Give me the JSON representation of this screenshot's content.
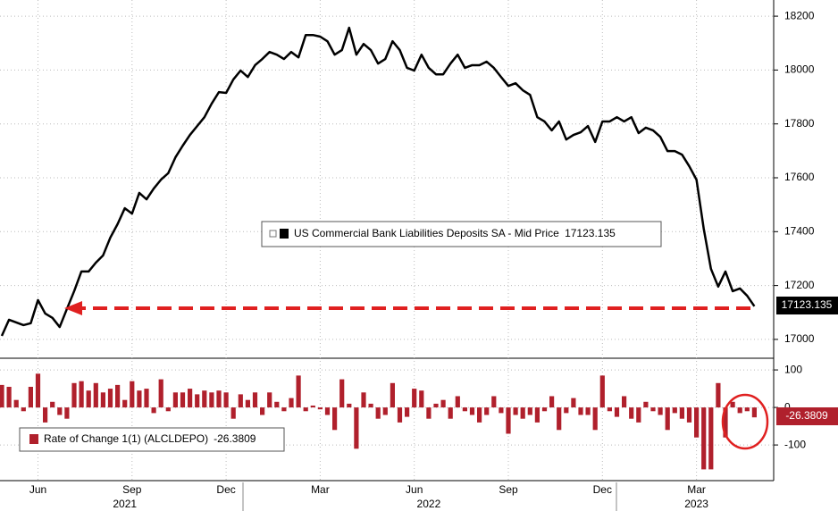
{
  "chart_data": [
    {
      "type": "line",
      "categories": [
        null,
        null,
        null,
        null,
        null,
        "Jun",
        null,
        null,
        null,
        null,
        null,
        null,
        null,
        null,
        null,
        null,
        null,
        null,
        "Sep",
        null,
        null,
        null,
        null,
        null,
        null,
        null,
        null,
        null,
        null,
        null,
        null,
        "Dec",
        null,
        null,
        null,
        null,
        null,
        null,
        null,
        null,
        null,
        null,
        null,
        null,
        "Mar",
        null,
        null,
        null,
        null,
        null,
        null,
        null,
        null,
        null,
        null,
        null,
        null,
        "Jun",
        null,
        null,
        null,
        null,
        null,
        null,
        null,
        null,
        null,
        null,
        null,
        null,
        "Sep",
        null,
        null,
        null,
        null,
        null,
        null,
        null,
        null,
        null,
        null,
        null,
        null,
        "Dec",
        null,
        null,
        null,
        null,
        null,
        null,
        null,
        null,
        null,
        null,
        null,
        null,
        "Mar",
        null,
        null,
        null,
        null,
        null,
        null,
        null,
        null
      ],
      "years": [
        null,
        null,
        null,
        null,
        null,
        null,
        null,
        null,
        null,
        null,
        null,
        null,
        null,
        null,
        null,
        null,
        null,
        "2021",
        null,
        null,
        null,
        null,
        null,
        null,
        null,
        null,
        null,
        null,
        null,
        null,
        null,
        null,
        null,
        null,
        null,
        null,
        null,
        null,
        null,
        null,
        null,
        null,
        null,
        null,
        null,
        null,
        null,
        null,
        null,
        null,
        null,
        null,
        null,
        null,
        null,
        null,
        null,
        null,
        null,
        "2022",
        null,
        null,
        null,
        null,
        null,
        null,
        null,
        null,
        null,
        null,
        null,
        null,
        null,
        null,
        null,
        null,
        null,
        null,
        null,
        null,
        null,
        null,
        null,
        null,
        null,
        null,
        null,
        null,
        null,
        null,
        null,
        null,
        null,
        null,
        null,
        null,
        "2023",
        null,
        null,
        null,
        null,
        null,
        null,
        null,
        null
      ],
      "series": [
        {
          "name": "US Commercial Bank Liabilities Deposits SA - Mid Price",
          "color": "#000000",
          "values": [
            17013,
            17073,
            17063,
            17053,
            17060,
            17146,
            17096,
            17080,
            17046,
            17113,
            17179,
            17252,
            17252,
            17285,
            17312,
            17378,
            17428,
            17487,
            17467,
            17544,
            17520,
            17560,
            17593,
            17617,
            17676,
            17719,
            17759,
            17792,
            17825,
            17875,
            17918,
            17915,
            17965,
            17998,
            17974,
            18018,
            18041,
            18067,
            18057,
            18041,
            18067,
            18047,
            18130,
            18130,
            18124,
            18107,
            18057,
            18074,
            18157,
            18057,
            18097,
            18074,
            18024,
            18041,
            18107,
            18074,
            18008,
            17998,
            18057,
            18008,
            17984,
            17984,
            18024,
            18057,
            18008,
            18018,
            18018,
            18031,
            18008,
            17974,
            17941,
            17951,
            17925,
            17908,
            17825,
            17809,
            17776,
            17809,
            17742,
            17759,
            17769,
            17792,
            17733,
            17809,
            17809,
            17825,
            17809,
            17825,
            17766,
            17786,
            17776,
            17752,
            17699,
            17699,
            17686,
            17643,
            17593,
            17411,
            17262,
            17196,
            17252,
            17179,
            17189,
            17162,
            17123.135
          ]
        }
      ],
      "ylim": [
        16940,
        18260
      ],
      "yticks": [
        17000,
        17200,
        17400,
        17600,
        17800,
        18000,
        18200
      ],
      "grid": true
    },
    {
      "type": "bar",
      "series": [
        {
          "name": "Rate of Change 1(1) (ALCLDEPO)",
          "color": "#b0202c",
          "values": [
            60,
            55,
            20,
            -10,
            55,
            90,
            -40,
            15,
            -20,
            -30,
            65,
            70,
            45,
            65,
            40,
            50,
            60,
            20,
            70,
            45,
            50,
            -15,
            75,
            -10,
            40,
            40,
            50,
            35,
            45,
            40,
            45,
            40,
            -30,
            35,
            20,
            40,
            -20,
            40,
            15,
            -10,
            25,
            85,
            -10,
            5,
            -5,
            -20,
            -60,
            75,
            10,
            -110,
            40,
            10,
            -30,
            -20,
            65,
            -40,
            -25,
            50,
            45,
            -30,
            10,
            20,
            -30,
            30,
            -10,
            -20,
            -40,
            -20,
            30,
            -15,
            -70,
            -20,
            -30,
            -20,
            -40,
            -10,
            30,
            -60,
            -15,
            25,
            -20,
            -20,
            -60,
            85,
            -10,
            -25,
            30,
            -30,
            -40,
            15,
            -10,
            -20,
            -60,
            -15,
            -30,
            -40,
            -80,
            -165,
            -165,
            65,
            -80,
            15,
            -15,
            -10,
            -26.3809
          ]
        }
      ],
      "ylim": [
        -195,
        124
      ],
      "yticks": [
        -100,
        0,
        100
      ],
      "grid": true
    }
  ]
}
